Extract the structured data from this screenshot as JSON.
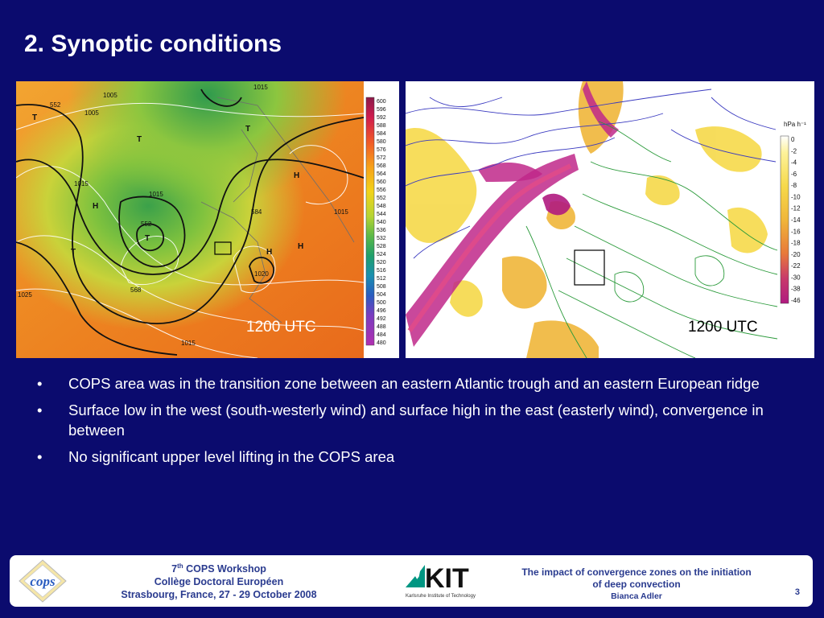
{
  "slide": {
    "title": "2. Synoptic conditions"
  },
  "left_map": {
    "time_label": "1200 UTC",
    "colorbar_ticks": [
      "600",
      "596",
      "592",
      "588",
      "584",
      "580",
      "576",
      "572",
      "568",
      "564",
      "560",
      "556",
      "552",
      "548",
      "544",
      "540",
      "536",
      "532",
      "528",
      "524",
      "520",
      "516",
      "512",
      "508",
      "504",
      "500",
      "496",
      "492",
      "488",
      "484",
      "480"
    ],
    "contour_labels": [
      "552",
      "552",
      "568",
      "1005",
      "1015",
      "1015",
      "1020",
      "584",
      "1015",
      "1025",
      "1015",
      "1015",
      "1005"
    ],
    "pressure_centers": [
      "T",
      "T",
      "T",
      "T",
      "H",
      "H",
      "H",
      "H",
      "T"
    ]
  },
  "right_map": {
    "time_label": "1200 UTC",
    "colorbar_unit": "hPa h⁻¹",
    "colorbar_ticks": [
      "0",
      "-2",
      "-4",
      "-6",
      "-8",
      "-10",
      "-12",
      "-14",
      "-16",
      "-18",
      "-20",
      "-22",
      "-30",
      "-38",
      "-46"
    ]
  },
  "bullets": [
    "COPS area was in the transition zone between an eastern Atlantic trough and an eastern European ridge",
    "Surface low in the west (south-westerly wind) and surface high in the east (easterly wind), convergence in between",
    "No significant upper level lifting in the COPS area"
  ],
  "footer": {
    "workshop_number": "7",
    "workshop_suffix": "th",
    "workshop_name": "COPS Workshop",
    "venue": "Collège Doctoral Européen",
    "location_date": "Strasbourg, France, 27 - 29 October 2008",
    "kit_logo_text": "KIT",
    "kit_subtitle": "Karlsruhe Institute of Technology",
    "cops_logo_text": "cops",
    "talk_title_line1": "The impact of convergence zones on the initiation",
    "talk_title_line2": "of deep convection",
    "author": "Bianca Adler",
    "page_number": "3"
  },
  "colors": {
    "background": "#0b0b6e",
    "footer_text": "#2a3b8f"
  }
}
